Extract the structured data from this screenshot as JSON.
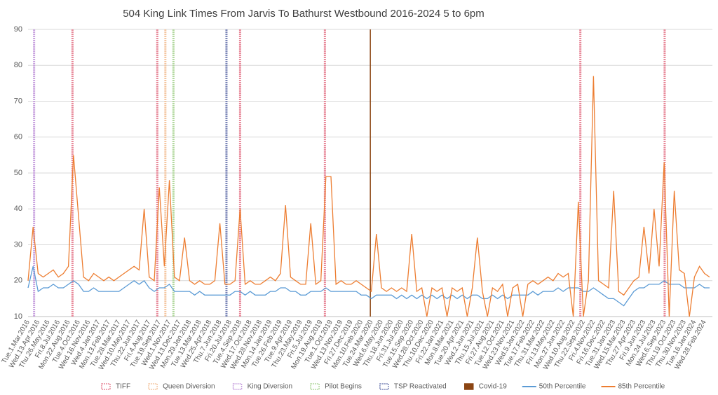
{
  "chart_data": {
    "type": "line",
    "title": "504 King Link Times From Jarvis To Bathurst Westbound 2016-2024 5 to 6pm",
    "categories": [
      "Tue.1.Mar.2016",
      null,
      "Wed.13.Apr.2016",
      null,
      "Thu.26.May.2016",
      null,
      "Fri.8.Jul.2016",
      null,
      "Mon.22.Aug.2016",
      null,
      "Tue.4.Oct.2016",
      null,
      "Wed.16.Nov.2016",
      null,
      "Wed.4.Jan.2017",
      null,
      "Mon.13.Feb.2017",
      null,
      "Tue.28.Mar.2017",
      null,
      "Wed.10.May.2017",
      null,
      "Thu.22.Jun.2017",
      null,
      "Fri.4.Aug.2017",
      null,
      "Tue.19.Sep.2017",
      null,
      "Wed.1.Nov.2017",
      null,
      "Wed.13.Dec.2017",
      null,
      "Mon.29.Jan.2018",
      null,
      "Tue.13.Mar.2018",
      null,
      "Wed.25.Apr.2018",
      null,
      "Thu.7.Jun.2018",
      null,
      "Fri.20.Jul.2018",
      null,
      "Tue.4.Sep.2018",
      null,
      "Wed.17.Oct.2018",
      null,
      "Wed.28.Nov.2018",
      null,
      "Mon.14.Jan.2019",
      null,
      "Tue.26.Feb.2019",
      null,
      "Tue.9.Apr.2019",
      null,
      "Thu.23.May.2019",
      null,
      "Fri.5.Jul.2019",
      null,
      "Mon.19.Aug.2019",
      null,
      "Tue.1.Oct.2019",
      null,
      "Wed.13.Nov.2019",
      null,
      "Fri.27.Dec.2019",
      null,
      "Mon.10.Feb.2020",
      null,
      "Tue.24.Mar.2020",
      null,
      "Wed.6.May.2020",
      null,
      "Thu.18.Jun.2020",
      null,
      "Fri.31.Jul.2020",
      null,
      "Tue.15.Sep.2020",
      null,
      "Wed.28.Oct.2020",
      null,
      "Thu.10.Dec.2020",
      null,
      "Fri.22.Jan.2021",
      null,
      "Mon.8.Mar.2021",
      null,
      "Tue.20.Apr.2021",
      null,
      "Wed.2.Jun.2021",
      null,
      "Thu.15.Jul.2021",
      null,
      "Fri.27.Aug.2021",
      null,
      "Tue.12.Oct.2021",
      null,
      "Wed.23.Nov.2021",
      null,
      "Wed.5.Jan.2022",
      null,
      "Tue.17.Feb.2022",
      null,
      "Thu.31.Mar.2022",
      null,
      "Fri.13.May.2022",
      null,
      "Mon.27.Jun.2022",
      null,
      "Wed.10.Aug.2022",
      null,
      "Thu.22.Sep.2022",
      null,
      "Fri.4.Nov.2022",
      null,
      "Fri.16.Dec.2022",
      null,
      "Tue.31.Jan.2023",
      null,
      "Wed.15.Mar.2023",
      null,
      "Thu.27.Apr.2023",
      null,
      "Fri.9.Jun.2023",
      null,
      "Mon.24.Jul.2023",
      null,
      "Wed.6.Sep.2023",
      null,
      "Thu.19.Oct.2023",
      null,
      "Thu.30.Nov.2023",
      null,
      "Tue.16.Jan.2024",
      null,
      "Wed.28.Feb.2024",
      null
    ],
    "series": [
      {
        "name": "TIFF",
        "type": "event",
        "color": "#e8899a",
        "x": [
          4.4,
          12.8,
          21.0,
          29.4,
          54.7,
          63.05
        ]
      },
      {
        "name": "Queen Diversion",
        "type": "event",
        "color": "#f4c7a2",
        "x": [
          13.6
        ]
      },
      {
        "name": "King Diversion",
        "type": "event",
        "color": "#c9a3df",
        "x": [
          0.6
        ]
      },
      {
        "name": "Pilot Begins",
        "type": "event",
        "color": "#b3d99f",
        "x": [
          14.4
        ]
      },
      {
        "name": "TSP Reactivated",
        "type": "event",
        "color": "#7b86b8",
        "x": [
          19.65
        ]
      },
      {
        "name": "Covid-19",
        "type": "event",
        "color": "#8b4513",
        "x": [
          33.9
        ]
      },
      {
        "name": "50th Percentile",
        "color": "#5b9bd5",
        "values": [
          18,
          24,
          17,
          18,
          18,
          19,
          18,
          18,
          19,
          20,
          19,
          17,
          17,
          18,
          17,
          17,
          17,
          17,
          17,
          18,
          19,
          20,
          19,
          20,
          18,
          17,
          18,
          18,
          19,
          17,
          17,
          17,
          17,
          16,
          17,
          16,
          16,
          16,
          16,
          16,
          16,
          17,
          17,
          16,
          17,
          16,
          16,
          16,
          17,
          17,
          18,
          18,
          17,
          17,
          16,
          16,
          17,
          17,
          17,
          18,
          17,
          17,
          17,
          17,
          17,
          17,
          16,
          16,
          15,
          16,
          16,
          16,
          16,
          15,
          16,
          15,
          16,
          15,
          16,
          15,
          16,
          15,
          16,
          15,
          16,
          15,
          16,
          15,
          16,
          16,
          15,
          15,
          16,
          15,
          16,
          15,
          16,
          16,
          16,
          16,
          17,
          16,
          17,
          17,
          17,
          18,
          17,
          18,
          18,
          18,
          17,
          17,
          18,
          17,
          16,
          15,
          15,
          14,
          13,
          15,
          17,
          18,
          18,
          19,
          19,
          19,
          20,
          19,
          19,
          19,
          18,
          18,
          18,
          19,
          18,
          18
        ]
      },
      {
        "name": "85th Percentile",
        "color": "#ed7d31",
        "values": [
          20,
          35,
          22,
          21,
          22,
          23,
          21,
          22,
          24,
          55,
          38,
          21,
          20,
          22,
          21,
          20,
          21,
          20,
          21,
          22,
          23,
          24,
          23,
          40,
          21,
          20,
          46,
          24,
          48,
          21,
          20,
          32,
          20,
          19,
          20,
          19,
          19,
          20,
          36,
          19,
          19,
          20,
          40,
          19,
          20,
          19,
          19,
          20,
          21,
          20,
          22,
          41,
          21,
          20,
          19,
          19,
          36,
          19,
          20,
          49,
          49,
          19,
          20,
          19,
          19,
          20,
          19,
          18,
          17,
          33,
          18,
          17,
          18,
          17,
          18,
          17,
          33,
          17,
          18,
          10,
          18,
          17,
          18,
          10,
          18,
          17,
          18,
          10,
          18,
          32,
          17,
          10,
          18,
          17,
          19,
          10,
          18,
          19,
          10,
          19,
          20,
          19,
          20,
          21,
          20,
          22,
          21,
          22,
          10,
          42,
          10,
          20,
          77,
          20,
          19,
          18,
          45,
          17,
          16,
          18,
          20,
          21,
          35,
          22,
          40,
          24,
          53,
          10,
          45,
          23,
          22,
          10,
          21,
          24,
          22,
          21
        ]
      }
    ],
    "ylim": [
      10,
      90
    ],
    "yticks": [
      10,
      20,
      30,
      40,
      50,
      60,
      70,
      80,
      90
    ],
    "grid": true,
    "legend": "bottom"
  }
}
